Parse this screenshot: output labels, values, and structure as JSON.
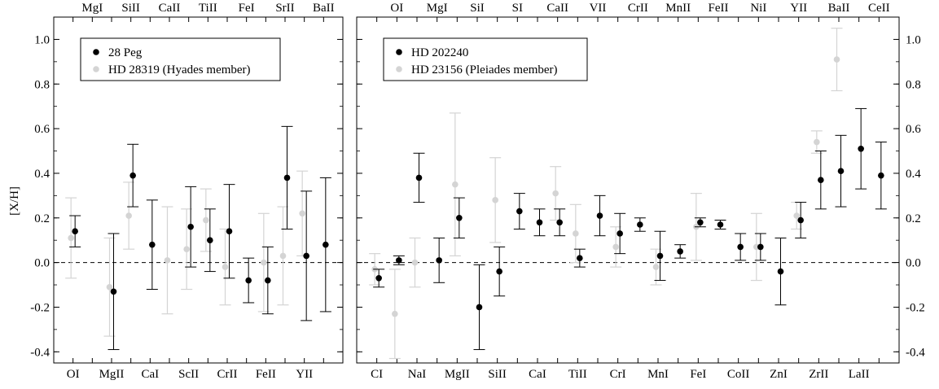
{
  "chart_data": [
    {
      "type": "scatter",
      "ylabel": "[X/H]",
      "ylim": [
        -0.45,
        1.1
      ],
      "yticks": [
        -0.4,
        -0.2,
        0.0,
        0.2,
        0.4,
        0.6,
        0.8,
        1.0
      ],
      "ytick_labels": [
        "-0.4",
        "-0.2",
        "0.0",
        "0.2",
        "0.4",
        "0.6",
        "0.8",
        "1.0"
      ],
      "reference_line": 0.0,
      "legend_placement": "top-left",
      "categories": [
        "OI",
        "MgI",
        "MgII",
        "SiII",
        "CaI",
        "CaII",
        "ScII",
        "TiII",
        "CrII",
        "FeI",
        "FeII",
        "SrII",
        "YII",
        "BaII"
      ],
      "series": [
        {
          "name": "28 Peg",
          "color": "#000000",
          "values": [
            0.14,
            null,
            -0.13,
            0.39,
            0.08,
            null,
            0.16,
            0.1,
            0.14,
            -0.08,
            -0.08,
            0.38,
            0.03,
            0.08
          ],
          "err_low": [
            0.07,
            null,
            0.26,
            0.14,
            0.2,
            null,
            0.18,
            0.14,
            0.21,
            0.1,
            0.15,
            0.23,
            0.29,
            0.3
          ],
          "err_high": [
            0.07,
            null,
            0.26,
            0.14,
            0.2,
            null,
            0.18,
            0.14,
            0.21,
            0.1,
            0.15,
            0.23,
            0.29,
            0.3
          ]
        },
        {
          "name": "HD 28319 (Hyades member)",
          "color": "#d4d4d4",
          "values": [
            0.11,
            null,
            -0.11,
            0.21,
            null,
            0.01,
            0.06,
            0.19,
            -0.02,
            null,
            0.0,
            0.03,
            0.22,
            null
          ],
          "err_low": [
            0.18,
            null,
            0.22,
            0.15,
            null,
            0.24,
            0.18,
            0.14,
            0.17,
            null,
            0.22,
            0.22,
            0.19,
            null
          ],
          "err_high": [
            0.18,
            null,
            0.22,
            0.15,
            null,
            0.24,
            0.18,
            0.14,
            0.17,
            null,
            0.22,
            0.22,
            0.19,
            null
          ]
        }
      ],
      "top_axis_labels": [
        "MgI",
        "SiII",
        "CaII",
        "TiII",
        "FeI",
        "SrII",
        "BaII"
      ],
      "bottom_axis_labels": [
        "OI",
        "MgII",
        "CaI",
        "ScII",
        "CrII",
        "FeII",
        "YII"
      ]
    },
    {
      "type": "scatter",
      "ylim": [
        -0.45,
        1.1
      ],
      "yticks": [
        -0.4,
        -0.2,
        0.0,
        0.2,
        0.4,
        0.6,
        0.8,
        1.0
      ],
      "ytick_labels": [
        "-0.4",
        "-0.2",
        "0.0",
        "0.2",
        "0.4",
        "0.6",
        "0.8",
        "1.0"
      ],
      "reference_line": 0.0,
      "legend_placement": "top-left",
      "categories": [
        "CI",
        "OI",
        "NaI",
        "MgI",
        "MgII",
        "SiI",
        "SiII",
        "SI",
        "CaI",
        "CaII",
        "TiII",
        "VII",
        "CrI",
        "CrII",
        "MnI",
        "MnII",
        "FeI",
        "FeII",
        "CoII",
        "NiI",
        "ZnI",
        "YII",
        "ZrII",
        "BaII",
        "LaII",
        "CeII"
      ],
      "series": [
        {
          "name": "HD 202240",
          "color": "#000000",
          "values": [
            -0.07,
            0.01,
            0.38,
            0.01,
            0.2,
            -0.2,
            -0.04,
            0.23,
            0.18,
            0.18,
            0.02,
            0.21,
            0.13,
            0.17,
            0.03,
            0.05,
            0.18,
            0.17,
            0.07,
            0.07,
            -0.04,
            0.19,
            0.37,
            0.41,
            0.51,
            0.39
          ],
          "err_low": [
            0.04,
            0.02,
            0.11,
            0.1,
            0.09,
            0.19,
            0.11,
            0.08,
            0.06,
            0.06,
            0.04,
            0.09,
            0.09,
            0.03,
            0.11,
            0.03,
            0.02,
            0.02,
            0.06,
            0.06,
            0.15,
            0.08,
            0.13,
            0.16,
            0.18,
            0.15
          ],
          "err_high": [
            0.04,
            0.02,
            0.11,
            0.1,
            0.09,
            0.19,
            0.11,
            0.08,
            0.06,
            0.06,
            0.04,
            0.09,
            0.09,
            0.03,
            0.11,
            0.03,
            0.02,
            0.02,
            0.06,
            0.06,
            0.15,
            0.08,
            0.13,
            0.16,
            0.18,
            0.15
          ]
        },
        {
          "name": "HD 23156 (Pleiades member)",
          "color": "#d4d4d4",
          "values": [
            -0.03,
            -0.23,
            0.0,
            null,
            0.35,
            null,
            0.28,
            null,
            null,
            0.31,
            0.13,
            null,
            0.07,
            null,
            -0.02,
            null,
            0.16,
            null,
            null,
            0.07,
            null,
            0.21,
            0.54,
            0.91,
            null,
            null
          ],
          "err_low": [
            0.07,
            0.2,
            0.11,
            null,
            0.32,
            null,
            0.19,
            null,
            null,
            0.12,
            0.13,
            null,
            0.09,
            null,
            0.08,
            null,
            0.15,
            null,
            null,
            0.15,
            null,
            0.06,
            0.05,
            0.14,
            null,
            null
          ],
          "err_high": [
            0.07,
            0.2,
            0.11,
            null,
            0.32,
            null,
            0.19,
            null,
            null,
            0.12,
            0.13,
            null,
            0.09,
            null,
            0.08,
            null,
            0.15,
            null,
            null,
            0.15,
            null,
            0.06,
            0.05,
            0.14,
            null,
            null
          ]
        }
      ],
      "top_axis_labels": [
        "OI",
        "MgI",
        "SiI",
        "SI",
        "CaII",
        "VII",
        "CrII",
        "MnII",
        "FeII",
        "NiI",
        "YII",
        "BaII",
        "CeII"
      ],
      "bottom_axis_labels": [
        "CI",
        "NaI",
        "MgII",
        "SiII",
        "CaI",
        "TiII",
        "CrI",
        "MnI",
        "FeI",
        "CoII",
        "ZnI",
        "ZrII",
        "LaII"
      ]
    }
  ]
}
